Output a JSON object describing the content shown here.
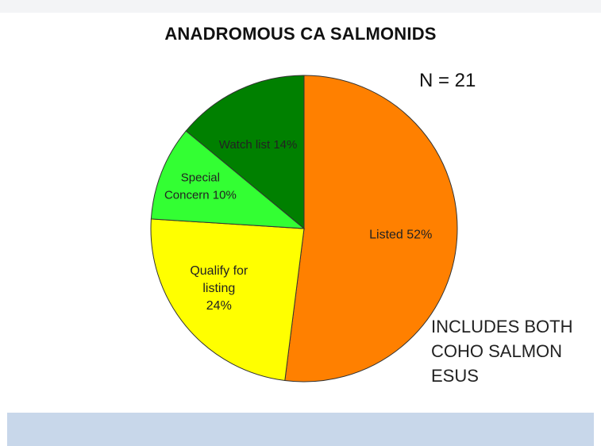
{
  "chart_data": {
    "type": "pie",
    "title": "ANADROMOUS CA SALMONIDS",
    "annotation": "N = 21",
    "series": [
      {
        "label_lines": [
          "Listed 52%"
        ],
        "value": 52,
        "color": "#ff8000"
      },
      {
        "label_lines": [
          "Qualify for",
          "listing",
          "24%"
        ],
        "value": 24,
        "color": "#ffff00"
      },
      {
        "label_lines": [
          "Special",
          "Concern 10%"
        ],
        "value": 10,
        "color": "#33ff33"
      },
      {
        "label_lines": [
          "Watch list 14%"
        ],
        "value": 14,
        "color": "#008000"
      }
    ]
  },
  "note_lines": [
    "INCLUDES BOTH",
    "COHO SALMON",
    "ESUS"
  ]
}
